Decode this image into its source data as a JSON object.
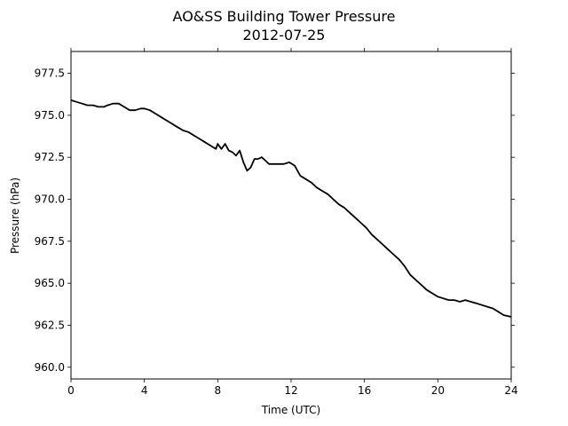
{
  "chart_data": {
    "type": "line",
    "title": "AO&SS Building Tower Pressure",
    "subtitle": "2012-07-25",
    "xlabel": "Time (UTC)",
    "ylabel": "Pressure (hPa)",
    "xlim": [
      0,
      24
    ],
    "ylim": [
      959.3,
      978.8
    ],
    "x_ticks": [
      0,
      4,
      8,
      12,
      16,
      20,
      24
    ],
    "x_tick_labels": [
      "0",
      "4",
      "8",
      "12",
      "16",
      "20",
      "24"
    ],
    "y_ticks": [
      960.0,
      962.5,
      965.0,
      967.5,
      970.0,
      972.5,
      975.0,
      977.5
    ],
    "y_tick_labels": [
      "960.0",
      "962.5",
      "965.0",
      "967.5",
      "970.0",
      "972.5",
      "975.0",
      "977.5"
    ],
    "grid": false,
    "series": [
      {
        "color": "#000000",
        "x": [
          0.0,
          0.3,
          0.6,
          0.9,
          1.2,
          1.5,
          1.8,
          2.0,
          2.3,
          2.6,
          2.9,
          3.2,
          3.5,
          3.8,
          4.0,
          4.3,
          4.6,
          4.9,
          5.2,
          5.5,
          5.8,
          6.1,
          6.4,
          6.7,
          7.0,
          7.3,
          7.6,
          7.9,
          8.0,
          8.2,
          8.4,
          8.6,
          8.8,
          9.0,
          9.2,
          9.4,
          9.6,
          9.8,
          10.0,
          10.2,
          10.4,
          10.6,
          10.8,
          11.0,
          11.3,
          11.6,
          11.9,
          12.2,
          12.5,
          12.8,
          13.1,
          13.4,
          13.7,
          14.0,
          14.3,
          14.6,
          14.9,
          15.2,
          15.5,
          15.8,
          16.1,
          16.4,
          16.7,
          17.0,
          17.3,
          17.6,
          17.9,
          18.2,
          18.5,
          18.8,
          19.1,
          19.4,
          19.7,
          20.0,
          20.3,
          20.6,
          20.9,
          21.2,
          21.5,
          21.8,
          22.1,
          22.4,
          22.7,
          23.0,
          23.3,
          23.6,
          24.0
        ],
        "y": [
          975.9,
          975.8,
          975.7,
          975.6,
          975.6,
          975.5,
          975.5,
          975.6,
          975.7,
          975.7,
          975.5,
          975.3,
          975.3,
          975.4,
          975.4,
          975.3,
          975.1,
          974.9,
          974.7,
          974.5,
          974.3,
          974.1,
          974.0,
          973.8,
          973.6,
          973.4,
          973.2,
          973.0,
          973.3,
          973.0,
          973.3,
          972.9,
          972.8,
          972.6,
          972.9,
          972.2,
          971.7,
          971.9,
          972.4,
          972.4,
          972.5,
          972.3,
          972.1,
          972.1,
          972.1,
          972.1,
          972.2,
          972.0,
          971.4,
          971.2,
          971.0,
          970.7,
          970.5,
          970.3,
          970.0,
          969.7,
          969.5,
          969.2,
          968.9,
          968.6,
          968.3,
          967.9,
          967.6,
          967.3,
          967.0,
          966.7,
          966.4,
          966.0,
          965.5,
          965.2,
          964.9,
          964.6,
          964.4,
          964.2,
          964.1,
          964.0,
          964.0,
          963.9,
          964.0,
          963.9,
          963.8,
          963.7,
          963.6,
          963.5,
          963.3,
          963.1,
          963.0
        ]
      }
    ]
  }
}
